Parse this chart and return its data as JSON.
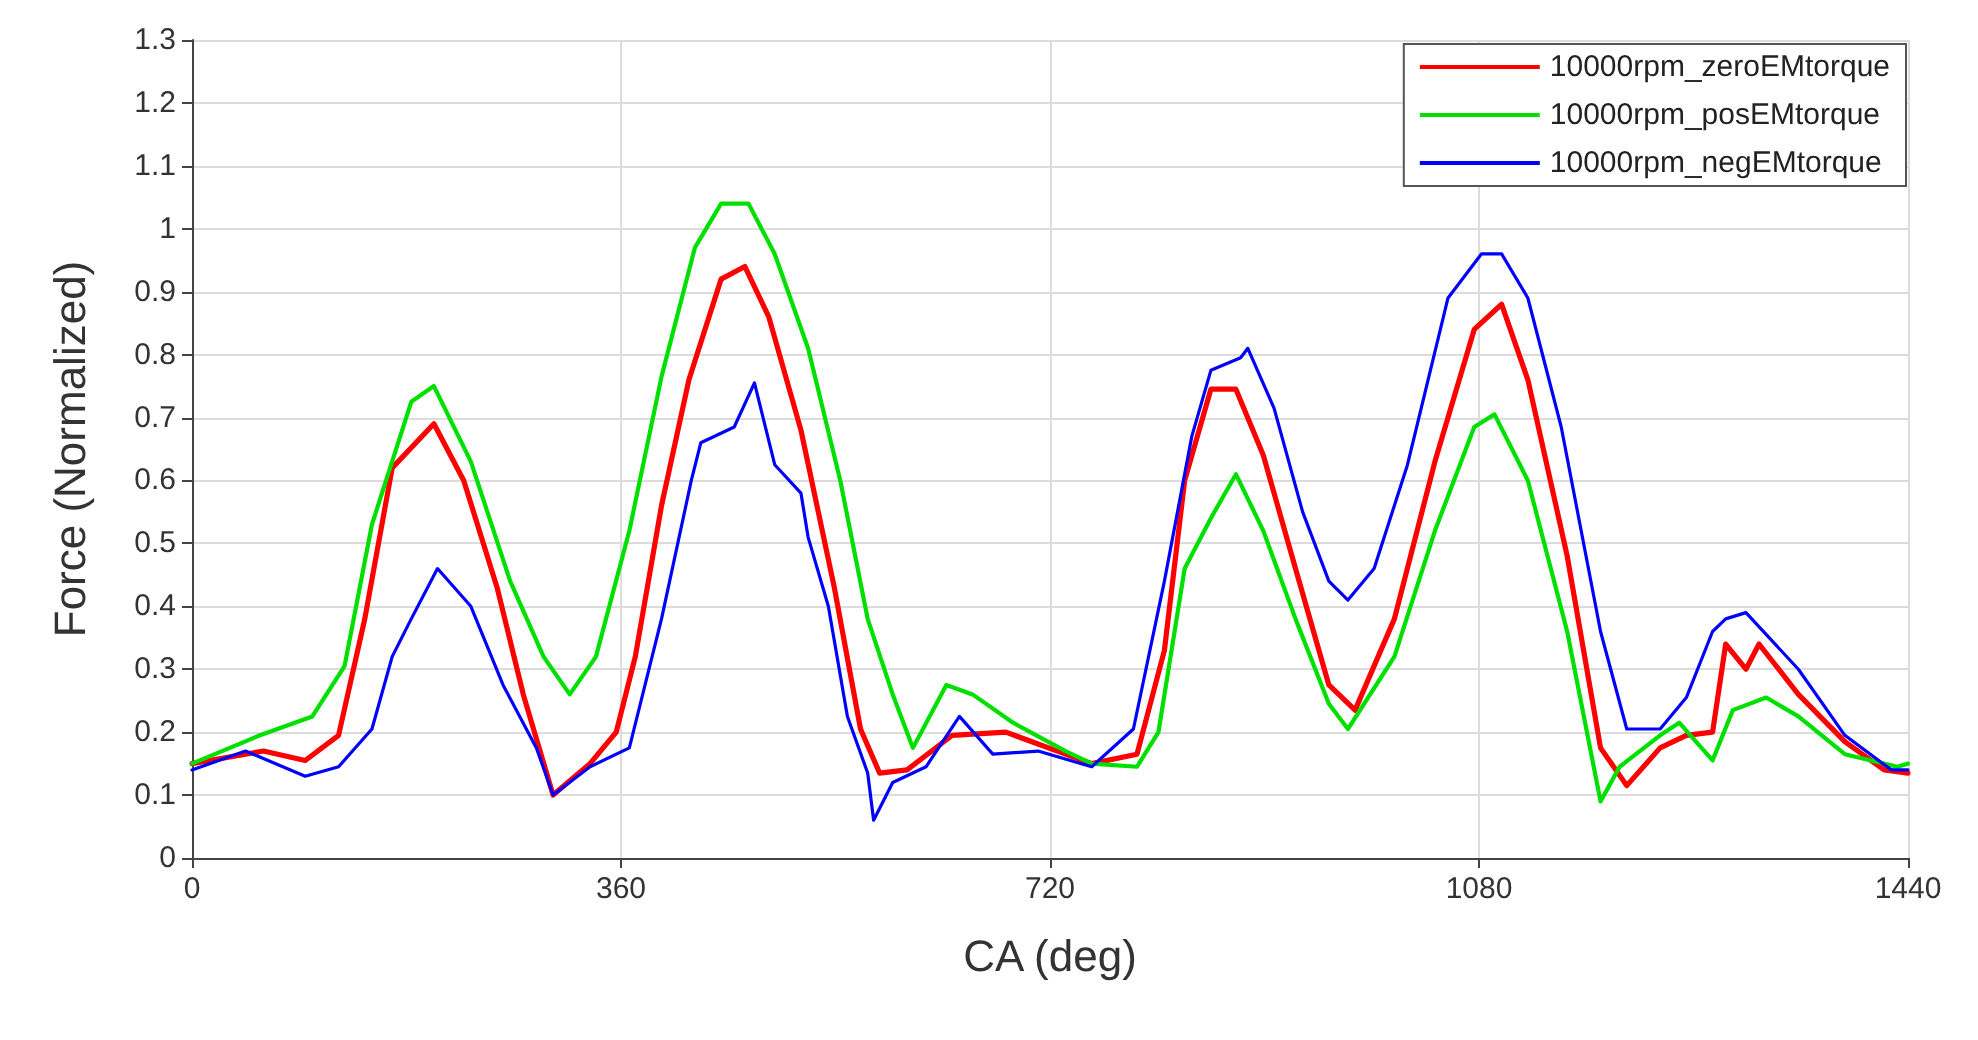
{
  "chart_data": {
    "type": "line",
    "xlabel": "CA (deg)",
    "ylabel": "Force (Normalized)",
    "xlim": [
      0,
      1440
    ],
    "xticks": [
      0,
      360,
      720,
      1080,
      1440
    ],
    "ylim": [
      0,
      1.3
    ],
    "yticks": [
      0,
      0.1,
      0.2,
      0.3,
      0.4,
      0.5,
      0.6,
      0.7,
      0.8,
      0.9,
      1,
      1.1,
      1.2,
      1.3
    ],
    "grid": true,
    "legend": "top right",
    "marker": "none",
    "line_style": "solid",
    "series": [
      {
        "name": "10000rpm_zeroEMtorque",
        "color": "#ff0000",
        "x": [
          0,
          60,
          95,
          123,
          145,
          168,
          203,
          228,
          256,
          278,
          303,
          334,
          356,
          372,
          394,
          417,
          444,
          464,
          484,
          511,
          539,
          561,
          577,
          600,
          638,
          683,
          733,
          755,
          793,
          816,
          833,
          855,
          876,
          899,
          926,
          954,
          976,
          1009,
          1043,
          1076,
          1099,
          1121,
          1154,
          1182,
          1204,
          1232,
          1254,
          1276,
          1287,
          1304,
          1315,
          1348,
          1387,
          1420,
          1440
        ],
        "values": [
          0.15,
          0.17,
          0.155,
          0.195,
          0.38,
          0.62,
          0.69,
          0.6,
          0.43,
          0.26,
          0.1,
          0.15,
          0.2,
          0.32,
          0.56,
          0.76,
          0.92,
          0.94,
          0.86,
          0.68,
          0.43,
          0.205,
          0.135,
          0.14,
          0.195,
          0.2,
          0.165,
          0.15,
          0.165,
          0.33,
          0.6,
          0.745,
          0.745,
          0.64,
          0.46,
          0.275,
          0.235,
          0.38,
          0.63,
          0.84,
          0.88,
          0.76,
          0.48,
          0.175,
          0.115,
          0.175,
          0.195,
          0.2,
          0.34,
          0.3,
          0.34,
          0.26,
          0.185,
          0.14,
          0.135
        ]
      },
      {
        "name": "10000rpm_posEMtorque",
        "color": "#00e000",
        "x": [
          0,
          57,
          101,
          128,
          151,
          184,
          203,
          234,
          267,
          295,
          317,
          339,
          367,
          394,
          422,
          444,
          467,
          489,
          517,
          544,
          567,
          588,
          605,
          633,
          655,
          689,
          733,
          755,
          793,
          811,
          833,
          855,
          876,
          899,
          926,
          954,
          970,
          1009,
          1043,
          1076,
          1093,
          1121,
          1154,
          1182,
          1198,
          1232,
          1248,
          1276,
          1293,
          1321,
          1348,
          1387,
          1431,
          1440
        ],
        "values": [
          0.15,
          0.195,
          0.225,
          0.305,
          0.53,
          0.725,
          0.75,
          0.63,
          0.44,
          0.32,
          0.26,
          0.32,
          0.52,
          0.765,
          0.97,
          1.04,
          1.04,
          0.96,
          0.81,
          0.6,
          0.38,
          0.26,
          0.175,
          0.275,
          0.26,
          0.215,
          0.17,
          0.15,
          0.145,
          0.2,
          0.46,
          0.54,
          0.61,
          0.52,
          0.38,
          0.245,
          0.205,
          0.32,
          0.52,
          0.685,
          0.705,
          0.6,
          0.36,
          0.09,
          0.145,
          0.195,
          0.215,
          0.155,
          0.235,
          0.255,
          0.225,
          0.165,
          0.145,
          0.15
        ]
      },
      {
        "name": "10000rpm_negEMtorque",
        "color": "#0000ff",
        "x": [
          0,
          45,
          95,
          123,
          151,
          168,
          184,
          206,
          234,
          261,
          289,
          303,
          334,
          367,
          394,
          419,
          427,
          455,
          472,
          489,
          511,
          517,
          534,
          550,
          567,
          572,
          588,
          616,
          644,
          672,
          710,
          755,
          790,
          816,
          839,
          855,
          880,
          886,
          908,
          932,
          954,
          970,
          992,
          1020,
          1054,
          1082,
          1099,
          1121,
          1149,
          1182,
          1204,
          1232,
          1254,
          1276,
          1287,
          1304,
          1348,
          1387,
          1426,
          1440
        ],
        "values": [
          0.14,
          0.17,
          0.13,
          0.145,
          0.205,
          0.32,
          0.38,
          0.46,
          0.4,
          0.275,
          0.175,
          0.1,
          0.145,
          0.175,
          0.38,
          0.6,
          0.66,
          0.685,
          0.755,
          0.625,
          0.58,
          0.51,
          0.4,
          0.225,
          0.135,
          0.06,
          0.12,
          0.145,
          0.225,
          0.165,
          0.17,
          0.145,
          0.205,
          0.44,
          0.67,
          0.775,
          0.795,
          0.81,
          0.715,
          0.55,
          0.44,
          0.41,
          0.46,
          0.625,
          0.89,
          0.96,
          0.96,
          0.89,
          0.685,
          0.36,
          0.205,
          0.205,
          0.255,
          0.36,
          0.38,
          0.39,
          0.3,
          0.195,
          0.14,
          0.14
        ]
      }
    ]
  }
}
